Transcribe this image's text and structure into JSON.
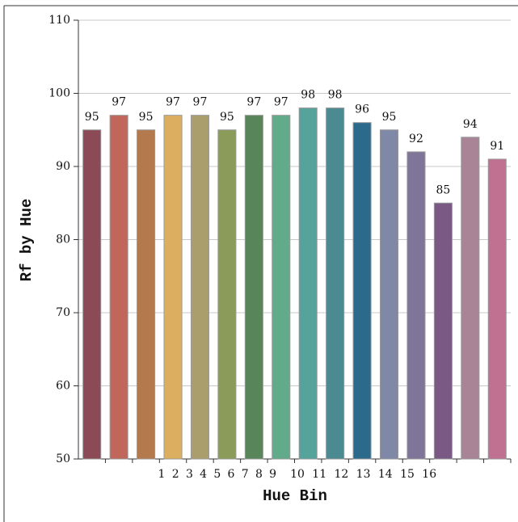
{
  "chart_data": {
    "type": "bar",
    "y_label": "Rf by Hue",
    "x_label": "Hue Bin",
    "categories": [
      "1",
      "2",
      "3",
      "4",
      "5",
      "6",
      "7",
      "8",
      "9",
      "10",
      "11",
      "12",
      "13",
      "14",
      "15",
      "16"
    ],
    "values": [
      95,
      97,
      95,
      97,
      97,
      95,
      97,
      97,
      98,
      98,
      96,
      95,
      92,
      85,
      94,
      91
    ],
    "colors": [
      "#8b4a55",
      "#c0665a",
      "#b47a4d",
      "#dcae5f",
      "#ab9e6d",
      "#8a9b5a",
      "#58855a",
      "#62ab8a",
      "#55a39a",
      "#4a8a90",
      "#2c6a8c",
      "#8088a8",
      "#7e7599",
      "#7a5a85",
      "#a98497",
      "#c07090"
    ],
    "ylim": [
      50,
      110
    ],
    "yticks": [
      50,
      60,
      70,
      80,
      90,
      100,
      110
    ],
    "grid": true
  }
}
